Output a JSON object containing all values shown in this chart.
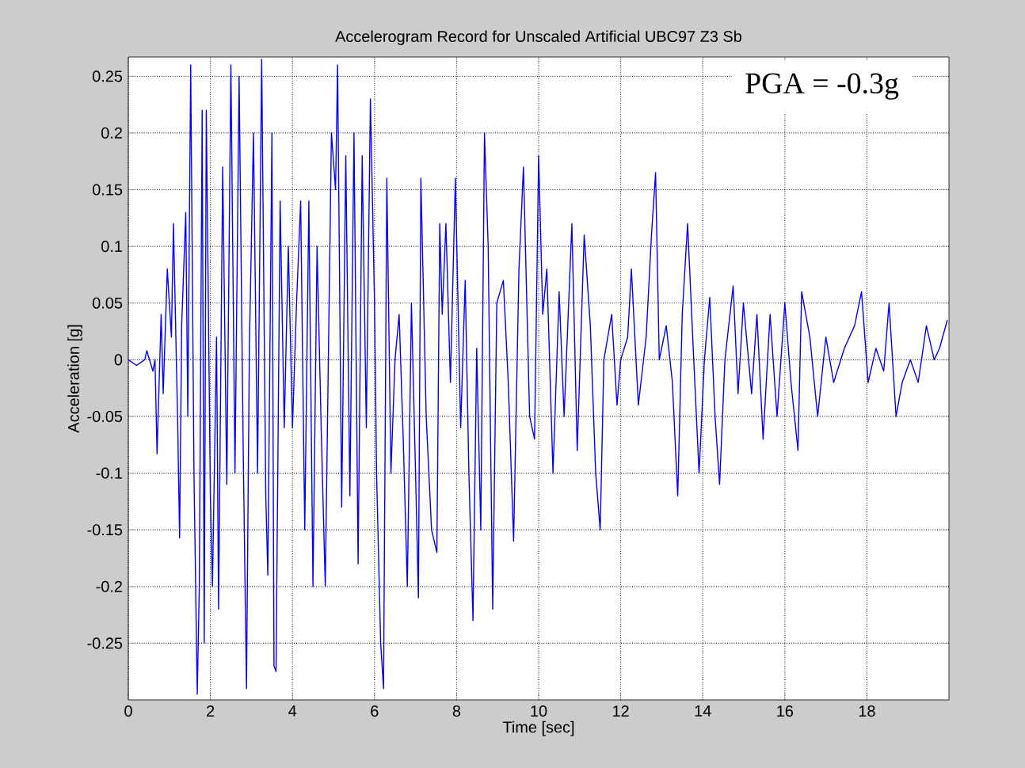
{
  "chart_data": {
    "type": "line",
    "title": "Accelerogram Record for Unscaled Artificial UBC97 Z3 Sb",
    "xlabel": "Time [sec]",
    "ylabel": "Acceleration [g]",
    "annotations": [
      "PGA = -0.3g"
    ],
    "xlim": [
      0,
      20
    ],
    "xticks": [
      0,
      2,
      4,
      6,
      8,
      10,
      12,
      14,
      16,
      18
    ],
    "ylim": [
      -0.3,
      0.267
    ],
    "yticks": [
      -0.25,
      -0.2,
      -0.15,
      -0.1,
      -0.05,
      0,
      0.05,
      0.1,
      0.15,
      0.2,
      0.25
    ],
    "grid": true,
    "line_style": "dotted",
    "series": [
      {
        "color": "#0000ff",
        "line_style": "solid",
        "x": [
          0,
          0.2,
          0.4,
          0.45,
          0.6,
          0.65,
          0.7,
          0.8,
          0.85,
          0.95,
          1.05,
          1.1,
          1.2,
          1.25,
          1.3,
          1.4,
          1.45,
          1.52,
          1.6,
          1.68,
          1.73,
          1.8,
          1.85,
          1.9,
          2.0,
          2.05,
          2.15,
          2.2,
          2.3,
          2.4,
          2.5,
          2.6,
          2.7,
          2.8,
          2.88,
          2.95,
          3.05,
          3.15,
          3.25,
          3.35,
          3.4,
          3.5,
          3.55,
          3.6,
          3.7,
          3.8,
          3.9,
          4.0,
          4.1,
          4.2,
          4.3,
          4.4,
          4.5,
          4.6,
          4.7,
          4.8,
          4.95,
          5.05,
          5.1,
          5.2,
          5.3,
          5.4,
          5.5,
          5.6,
          5.7,
          5.8,
          5.9,
          6.0,
          6.05,
          6.15,
          6.22,
          6.3,
          6.4,
          6.5,
          6.6,
          6.7,
          6.8,
          6.9,
          7.0,
          7.07,
          7.13,
          7.26,
          7.39,
          7.52,
          7.59,
          7.65,
          7.74,
          7.85,
          7.97,
          8.1,
          8.21,
          8.3,
          8.4,
          8.49,
          8.59,
          8.68,
          8.77,
          8.88,
          8.98,
          9.14,
          9.26,
          9.39,
          9.52,
          9.63,
          9.78,
          9.9,
          10.0,
          10.1,
          10.2,
          10.35,
          10.5,
          10.62,
          10.81,
          10.94,
          11.11,
          11.26,
          11.39,
          11.5,
          11.59,
          11.78,
          11.91,
          12.0,
          12.17,
          12.26,
          12.43,
          12.62,
          12.75,
          12.85,
          12.94,
          13.11,
          13.26,
          13.39,
          13.5,
          13.63,
          13.78,
          13.91,
          14.04,
          14.17,
          14.3,
          14.41,
          14.54,
          14.74,
          14.86,
          14.99,
          15.19,
          15.32,
          15.47,
          15.64,
          15.81,
          16.0,
          16.15,
          16.32,
          16.41,
          16.61,
          16.8,
          17.0,
          17.19,
          17.45,
          17.7,
          17.87,
          18.03,
          18.22,
          18.41,
          18.54,
          18.71,
          18.86,
          19.06,
          19.25,
          19.45,
          19.64,
          19.77,
          19.96
        ],
        "values": [
          0,
          -0.005,
          0,
          0.008,
          -0.01,
          0,
          -0.083,
          0.04,
          -0.03,
          0.08,
          0.02,
          0.12,
          -0.05,
          -0.157,
          0.03,
          0.13,
          -0.05,
          0.26,
          -0.1,
          -0.295,
          -0.2,
          0.22,
          -0.25,
          0.22,
          -0.12,
          -0.2,
          0.02,
          -0.22,
          0.17,
          -0.11,
          0.26,
          -0.1,
          0.25,
          -0.08,
          -0.29,
          0.01,
          0.2,
          -0.1,
          0.265,
          -0.12,
          -0.19,
          0.2,
          -0.27,
          -0.275,
          0.14,
          -0.06,
          0.1,
          -0.06,
          0.05,
          0.14,
          -0.15,
          0.14,
          -0.2,
          0.1,
          -0.06,
          -0.2,
          0.2,
          0.15,
          0.26,
          -0.13,
          0.18,
          -0.12,
          0.2,
          -0.18,
          0.18,
          -0.06,
          0.23,
          0.05,
          -0.1,
          -0.25,
          -0.29,
          0.16,
          -0.1,
          0,
          0.04,
          -0.07,
          -0.2,
          0.05,
          -0.1,
          -0.21,
          0.16,
          -0.05,
          -0.15,
          -0.17,
          0.12,
          0.04,
          0.12,
          -0.02,
          0.16,
          -0.06,
          0.07,
          -0.1,
          -0.23,
          0.01,
          -0.15,
          0.2,
          0.1,
          -0.22,
          0.05,
          0.07,
          -0.02,
          -0.16,
          0.08,
          0.17,
          -0.05,
          -0.07,
          0.18,
          0.04,
          0.08,
          -0.1,
          0.06,
          -0.05,
          0.12,
          -0.08,
          0.11,
          0.03,
          -0.1,
          -0.15,
          0,
          0.04,
          -0.04,
          0,
          0.02,
          0.08,
          -0.04,
          0.02,
          0.11,
          0.165,
          0,
          0.03,
          -0.02,
          -0.12,
          0.04,
          0.12,
          0,
          -0.1,
          0,
          0.055,
          -0.05,
          -0.11,
          0,
          0.065,
          -0.03,
          0.05,
          -0.03,
          0.04,
          -0.07,
          0.04,
          -0.05,
          0.05,
          -0.02,
          -0.08,
          0.06,
          0.02,
          -0.05,
          0.02,
          -0.02,
          0.01,
          0.03,
          0.06,
          -0.02,
          0.01,
          -0.01,
          0.05,
          -0.05,
          -0.02,
          0,
          -0.02,
          0.03,
          0,
          0.01,
          0.035
        ]
      }
    ]
  }
}
